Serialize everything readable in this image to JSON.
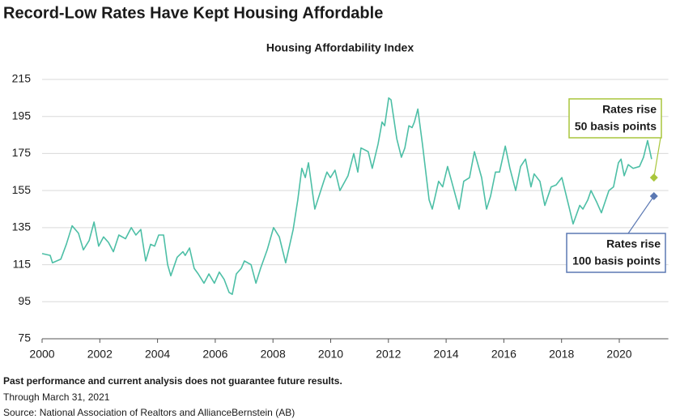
{
  "chart_data": {
    "type": "line",
    "title": "Record-Low Rates Have Kept Housing Affordable",
    "subtitle": "Housing Affordability Index",
    "xlim": [
      2000,
      2021.7
    ],
    "xticks": [
      2000,
      2002,
      2004,
      2006,
      2008,
      2010,
      2012,
      2014,
      2016,
      2018,
      2020
    ],
    "ylim": [
      75,
      215
    ],
    "yticks": [
      75,
      95,
      115,
      135,
      155,
      175,
      195,
      215
    ],
    "grid": true,
    "series": [
      {
        "color": "#4dbfa6",
        "x": [
          2000.0,
          2000.28,
          2000.36,
          2000.65,
          2000.84,
          2001.04,
          2001.26,
          2001.43,
          2001.63,
          2001.8,
          2001.96,
          2002.13,
          2002.3,
          2002.47,
          2002.66,
          2002.89,
          2003.09,
          2003.25,
          2003.42,
          2003.59,
          2003.76,
          2003.9,
          2004.04,
          2004.21,
          2004.35,
          2004.46,
          2004.68,
          2004.88,
          2004.96,
          2005.11,
          2005.27,
          2005.41,
          2005.61,
          2005.78,
          2005.97,
          2006.14,
          2006.31,
          2006.48,
          2006.59,
          2006.73,
          2006.9,
          2007.01,
          2007.24,
          2007.41,
          2007.57,
          2007.8,
          2008.02,
          2008.22,
          2008.44,
          2008.7,
          2008.86,
          2009.0,
          2009.12,
          2009.23,
          2009.45,
          2009.76,
          2009.87,
          2009.99,
          2010.15,
          2010.32,
          2010.6,
          2010.8,
          2010.94,
          2011.05,
          2011.3,
          2011.44,
          2011.64,
          2011.78,
          2011.87,
          2012.01,
          2012.09,
          2012.29,
          2012.45,
          2012.57,
          2012.71,
          2012.82,
          2012.9,
          2013.02,
          2013.18,
          2013.41,
          2013.52,
          2013.74,
          2013.88,
          2014.05,
          2014.19,
          2014.45,
          2014.61,
          2014.81,
          2014.98,
          2015.23,
          2015.4,
          2015.54,
          2015.71,
          2015.85,
          2016.05,
          2016.21,
          2016.41,
          2016.58,
          2016.75,
          2016.94,
          2017.05,
          2017.25,
          2017.42,
          2017.64,
          2017.81,
          2018.01,
          2018.23,
          2018.4,
          2018.63,
          2018.74,
          2018.91,
          2019.02,
          2019.21,
          2019.38,
          2019.64,
          2019.8,
          2019.97,
          2020.06,
          2020.17,
          2020.31,
          2020.48,
          2020.7,
          2020.84,
          2020.98,
          2021.12
        ],
        "values": [
          121,
          120,
          116,
          118,
          126,
          136,
          132,
          123,
          128,
          138,
          125,
          130,
          127,
          122,
          131,
          129,
          135,
          131,
          134,
          117,
          126,
          125,
          131,
          131,
          115,
          109,
          119,
          122,
          120,
          124,
          113,
          110,
          105,
          110,
          105,
          111,
          107,
          100,
          99,
          110,
          113,
          117,
          115,
          105,
          113,
          123,
          135,
          130,
          116,
          134,
          150,
          167,
          162,
          170,
          145,
          160,
          165,
          162,
          166,
          155,
          163,
          175,
          165,
          178,
          176,
          167,
          180,
          192,
          190,
          205,
          204,
          183,
          173,
          178,
          190,
          189,
          192,
          199,
          180,
          150,
          145,
          160,
          157,
          168,
          160,
          145,
          160,
          162,
          176,
          162,
          145,
          152,
          165,
          165,
          179,
          167,
          155,
          168,
          172,
          157,
          164,
          160,
          147,
          157,
          158,
          162,
          148,
          137,
          147,
          145,
          150,
          155,
          149,
          143,
          155,
          157,
          170,
          172,
          163,
          169,
          167,
          168,
          173,
          182,
          172
        ]
      }
    ],
    "annotations": [
      {
        "lines": [
          "Rates rise",
          "50 basis points"
        ],
        "x": 2021.2,
        "value": 162,
        "color": "#a9c63c"
      },
      {
        "lines": [
          "Rates rise",
          "100 basis points"
        ],
        "x": 2021.2,
        "value": 152,
        "color": "#5b78b3"
      }
    ],
    "footnotes": [
      "Past performance and current analysis does not guarantee future results.",
      "Through March 31, 2021",
      "Source: National Association of Realtors and AllianceBernstein (AB)"
    ]
  }
}
